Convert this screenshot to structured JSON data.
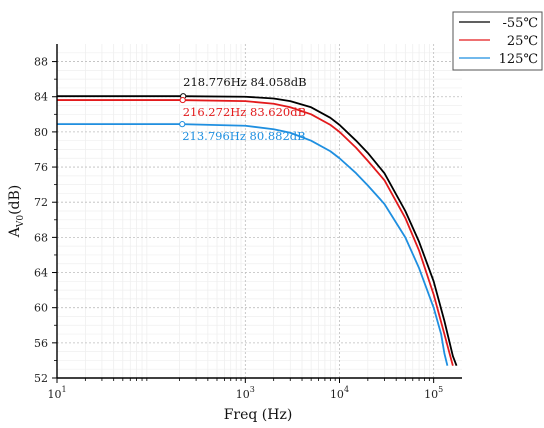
{
  "chart_data": {
    "type": "line",
    "title": "",
    "xlabel": "Freq (Hz)",
    "ylabel": "A",
    "ylabel_sub": "V0",
    "ylabel_unit": "(dB)",
    "xscale": "log",
    "xlim": [
      10,
      200000
    ],
    "ylim": [
      52,
      90
    ],
    "grid": true,
    "legend_position": "top-right",
    "x_ticks": [
      {
        "base": "10",
        "exp": "1"
      },
      {
        "base": "10",
        "exp": "3"
      },
      {
        "base": "10",
        "exp": "4"
      },
      {
        "base": "10",
        "exp": "5"
      }
    ],
    "y_ticks": [
      "52",
      "56",
      "60",
      "64",
      "68",
      "72",
      "76",
      "80",
      "84",
      "88"
    ],
    "series": [
      {
        "name": "-55℃",
        "color": "#000000",
        "points": [
          [
            10,
            84.06
          ],
          [
            200,
            84.06
          ],
          [
            1000,
            84.0
          ],
          [
            2000,
            83.8
          ],
          [
            3000,
            83.5
          ],
          [
            5000,
            82.8
          ],
          [
            8000,
            81.6
          ],
          [
            10000,
            80.8
          ],
          [
            15000,
            79.0
          ],
          [
            20000,
            77.6
          ],
          [
            30000,
            75.3
          ],
          [
            50000,
            71.0
          ],
          [
            70000,
            67.5
          ],
          [
            100000,
            63.0
          ],
          [
            130000,
            58.5
          ],
          [
            160000,
            54.5
          ],
          [
            175000,
            53.4
          ]
        ]
      },
      {
        "name": "25℃",
        "color": "#e31a1c",
        "points": [
          [
            10,
            83.62
          ],
          [
            200,
            83.62
          ],
          [
            1000,
            83.5
          ],
          [
            2000,
            83.2
          ],
          [
            3000,
            82.8
          ],
          [
            5000,
            82.0
          ],
          [
            8000,
            80.8
          ],
          [
            10000,
            80.0
          ],
          [
            15000,
            78.2
          ],
          [
            20000,
            76.7
          ],
          [
            30000,
            74.5
          ],
          [
            50000,
            70.2
          ],
          [
            70000,
            66.5
          ],
          [
            100000,
            61.5
          ],
          [
            130000,
            57.0
          ],
          [
            150000,
            54.5
          ],
          [
            160000,
            53.4
          ]
        ]
      },
      {
        "name": "125℃",
        "color": "#1f8fe0",
        "points": [
          [
            10,
            80.88
          ],
          [
            200,
            80.88
          ],
          [
            1000,
            80.7
          ],
          [
            2000,
            80.3
          ],
          [
            3000,
            79.9
          ],
          [
            5000,
            79.0
          ],
          [
            8000,
            77.8
          ],
          [
            10000,
            77.0
          ],
          [
            15000,
            75.3
          ],
          [
            20000,
            73.9
          ],
          [
            30000,
            71.8
          ],
          [
            50000,
            68.0
          ],
          [
            70000,
            64.5
          ],
          [
            100000,
            60.0
          ],
          [
            120000,
            57.0
          ],
          [
            130000,
            54.8
          ],
          [
            140000,
            53.4
          ]
        ]
      }
    ],
    "annotations": [
      {
        "text": "218.776Hz  84.058dB",
        "x": 218.776,
        "y": 84.058,
        "color": "#111111",
        "placement": "above"
      },
      {
        "text": "216.272Hz  83.620dB",
        "x": 216.272,
        "y": 83.62,
        "color": "#e31a1c",
        "placement": "below"
      },
      {
        "text": "213.796Hz  80.882dB",
        "x": 213.796,
        "y": 80.882,
        "color": "#1f8fe0",
        "placement": "below"
      }
    ]
  }
}
